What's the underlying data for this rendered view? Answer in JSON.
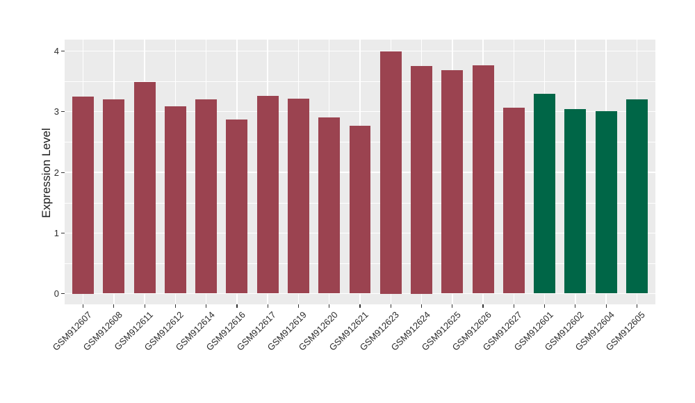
{
  "chart_data": {
    "type": "bar",
    "title": "",
    "xlabel": "",
    "ylabel": "Expression Level",
    "ylim": [
      0,
      4.2
    ],
    "yticks": [
      0,
      1,
      2,
      3,
      4
    ],
    "y_tick_labels": [
      "0",
      "1",
      "2",
      "3",
      "4"
    ],
    "grid": "horizontal major+minor, vertical major at each category; white on gray panel",
    "legend_position": "none",
    "categories": [
      "GSM912607",
      "GSM912608",
      "GSM912611",
      "GSM912612",
      "GSM912614",
      "GSM912616",
      "GSM912617",
      "GSM912619",
      "GSM912620",
      "GSM912621",
      "GSM912623",
      "GSM912624",
      "GSM912625",
      "GSM912626",
      "GSM912627",
      "GSM912601",
      "GSM912602",
      "GSM912604",
      "GSM912605"
    ],
    "values": [
      3.25,
      3.2,
      3.49,
      3.09,
      3.2,
      2.87,
      3.26,
      3.21,
      2.91,
      2.77,
      4.0,
      3.75,
      3.68,
      3.77,
      3.07,
      3.3,
      3.04,
      3.01,
      3.2
    ],
    "bar_colors": [
      "#9B4350",
      "#9B4350",
      "#9B4350",
      "#9B4350",
      "#9B4350",
      "#9B4350",
      "#9B4350",
      "#9B4350",
      "#9B4350",
      "#9B4350",
      "#9B4350",
      "#9B4350",
      "#9B4350",
      "#9B4350",
      "#9B4350",
      "#006647",
      "#006647",
      "#006647",
      "#006647"
    ],
    "colors": {
      "group_a_bar": "#9B4350",
      "group_b_bar": "#006647",
      "panel_background": "#EBEBEB",
      "gridline": "#FFFFFF",
      "tick": "#333333",
      "text": "#2b2b2b"
    }
  }
}
